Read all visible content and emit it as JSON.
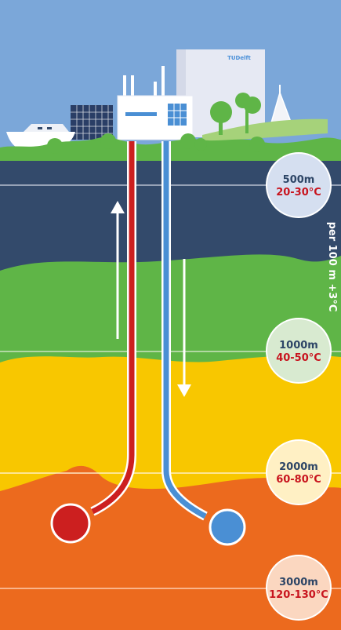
{
  "brand": {
    "logo_text": "TUDelft"
  },
  "gradient_label": "per 100 m +3°C",
  "depth_markers": [
    {
      "depth": "500m",
      "temp": "20-30°C"
    },
    {
      "depth": "1000m",
      "temp": "40-50°C"
    },
    {
      "depth": "2000m",
      "temp": "60-80°C"
    },
    {
      "depth": "3000m",
      "temp": "120-130°C"
    }
  ],
  "colors": {
    "sky": "#7ba7d9",
    "grass": "#5fb547",
    "layer_deep_blue": "#334a6b",
    "layer_green": "#5fb547",
    "layer_yellow": "#f8c700",
    "layer_orange": "#ec6a1e",
    "hot_pipe": "#cc1f1f",
    "cold_pipe": "#4a8fd4",
    "text_depth": "#2d4566",
    "text_temp": "#c8141e"
  }
}
